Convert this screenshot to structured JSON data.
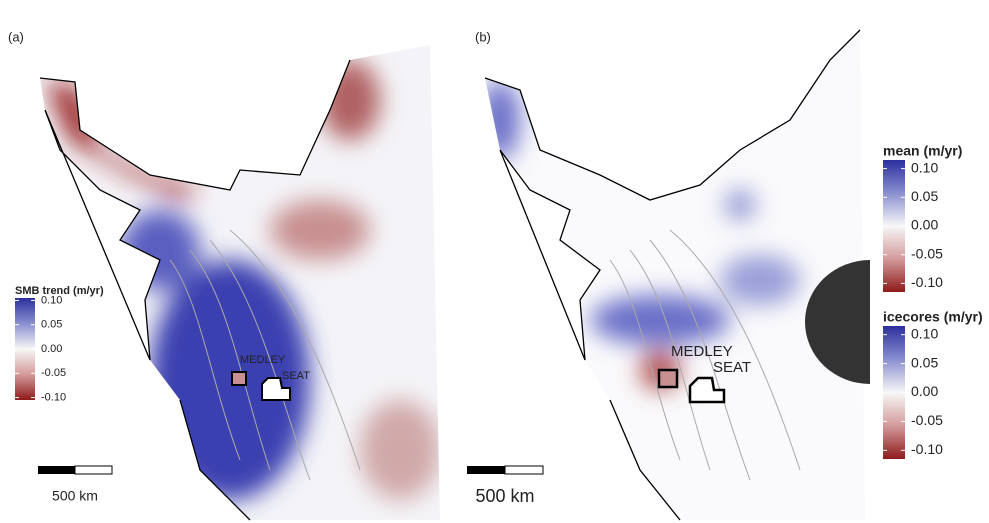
{
  "panels": [
    {
      "label": "(a)",
      "sites": [
        "MEDLEY",
        "SEAT"
      ],
      "scale_bar": "500 km",
      "legends": [
        {
          "title": "SMB trend (m/yr)",
          "lim": [
            -0.105,
            0.105
          ],
          "ticks": [
            {
              "value": 0.1,
              "label": "0.10"
            },
            {
              "value": 0.05,
              "label": "0.05"
            },
            {
              "value": 0,
              "label": "0.00"
            },
            {
              "value": -0.05,
              "label": "-0.05"
            },
            {
              "value": -0.1,
              "label": "-0.10"
            }
          ]
        }
      ]
    },
    {
      "label": "(b)",
      "sites": [
        "MEDLEY",
        "SEAT"
      ],
      "scale_bar": "500 km",
      "legends": [
        {
          "title": "mean (m/yr)",
          "lim": [
            -0.115,
            0.115
          ],
          "ticks": [
            {
              "value": 0.1,
              "label": "0.10"
            },
            {
              "value": 0.05,
              "label": "0.05"
            },
            {
              "value": 0,
              "label": "0.00"
            },
            {
              "value": -0.05,
              "label": "-0.05"
            },
            {
              "value": -0.1,
              "label": "-0.10"
            }
          ]
        },
        {
          "title": "icecores (m/yr)",
          "lim": [
            -0.115,
            0.115
          ],
          "ticks": [
            {
              "value": 0.1,
              "label": "0.10"
            },
            {
              "value": 0.05,
              "label": "0.05"
            },
            {
              "value": 0,
              "label": "0.00"
            },
            {
              "value": -0.05,
              "label": "-0.05"
            },
            {
              "value": -0.1,
              "label": "-0.10"
            }
          ]
        }
      ]
    }
  ]
}
